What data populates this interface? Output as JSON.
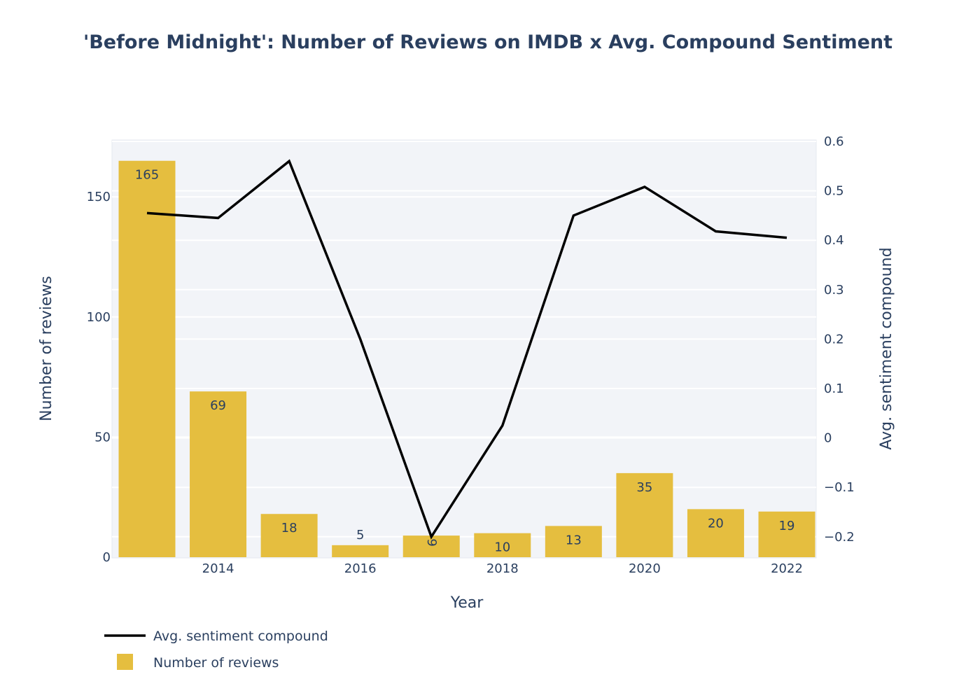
{
  "chart_data": {
    "type": "bar",
    "title": "'Before Midnight': Number of Reviews on IMDB x Avg. Compound Sentiment",
    "xlabel": "Year",
    "ylabel": "Number of reviews",
    "y2label": "Avg. sentiment compound",
    "x": [
      2013,
      2014,
      2015,
      2016,
      2017,
      2018,
      2019,
      2020,
      2021,
      2022
    ],
    "x_ticks": [
      "2014",
      "2016",
      "2018",
      "2020",
      "2022"
    ],
    "y_ticks": [
      "0",
      "50",
      "100",
      "150"
    ],
    "y2_ticks": [
      "−0.2",
      "−0.1",
      "0",
      "0.1",
      "0.2",
      "0.3",
      "0.4",
      "0.5",
      "0.6"
    ],
    "ylim": [
      0,
      175
    ],
    "y2lim": [
      -0.24,
      0.6
    ],
    "grid": true,
    "legend_position": "bottom-left",
    "series": [
      {
        "name": "Number of reviews",
        "type": "bar",
        "axis": "left",
        "color": "#e5be3f",
        "values": [
          165,
          69,
          18,
          5,
          9,
          10,
          13,
          35,
          20,
          19
        ],
        "labels": [
          "165",
          "69",
          "18",
          "5",
          "9",
          "10",
          "13",
          "35",
          "20",
          "19"
        ]
      },
      {
        "name": "Avg. sentiment compound",
        "type": "line",
        "axis": "right",
        "color": "#000000",
        "values": [
          0.455,
          0.445,
          0.56,
          0.2,
          -0.2,
          0.025,
          0.45,
          0.508,
          0.418,
          0.405
        ]
      }
    ]
  }
}
